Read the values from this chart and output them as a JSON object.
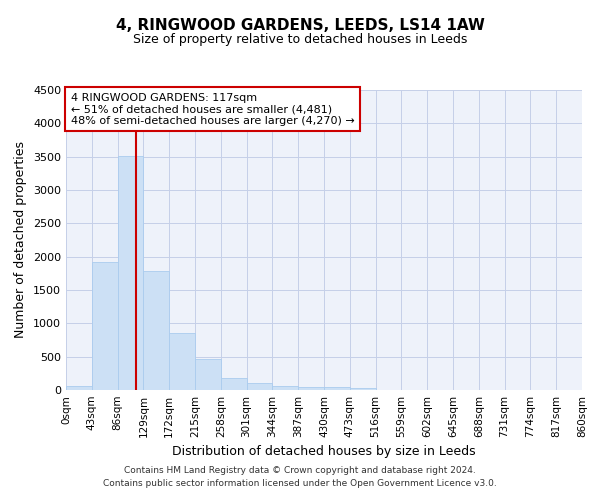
{
  "title": "4, RINGWOOD GARDENS, LEEDS, LS14 1AW",
  "subtitle": "Size of property relative to detached houses in Leeds",
  "xlabel": "Distribution of detached houses by size in Leeds",
  "ylabel": "Number of detached properties",
  "bar_color": "#cce0f5",
  "bar_edge_color": "#aaccee",
  "bg_color": "#eef2fa",
  "grid_color": "#c5cfe8",
  "property_line_x": 117,
  "property_line_color": "#cc0000",
  "annotation_text": "4 RINGWOOD GARDENS: 117sqm\n← 51% of detached houses are smaller (4,481)\n48% of semi-detached houses are larger (4,270) →",
  "annotation_box_color": "#ffffff",
  "annotation_box_edge": "#cc0000",
  "xlim": [
    0,
    860
  ],
  "ylim": [
    0,
    4500
  ],
  "bin_edges": [
    0,
    43,
    86,
    129,
    172,
    215,
    258,
    301,
    344,
    387,
    430,
    473,
    516,
    559,
    602,
    645,
    688,
    731,
    774,
    817,
    860
  ],
  "bin_heights": [
    55,
    1920,
    3510,
    1780,
    860,
    460,
    175,
    100,
    60,
    50,
    45,
    30,
    0,
    0,
    0,
    0,
    0,
    0,
    0,
    0
  ],
  "footer_text": "Contains HM Land Registry data © Crown copyright and database right 2024.\nContains public sector information licensed under the Open Government Licence v3.0.",
  "xtick_labels": [
    "0sqm",
    "43sqm",
    "86sqm",
    "129sqm",
    "172sqm",
    "215sqm",
    "258sqm",
    "301sqm",
    "344sqm",
    "387sqm",
    "430sqm",
    "473sqm",
    "516sqm",
    "559sqm",
    "602sqm",
    "645sqm",
    "688sqm",
    "731sqm",
    "774sqm",
    "817sqm",
    "860sqm"
  ],
  "ytick_vals": [
    0,
    500,
    1000,
    1500,
    2000,
    2500,
    3000,
    3500,
    4000,
    4500
  ]
}
